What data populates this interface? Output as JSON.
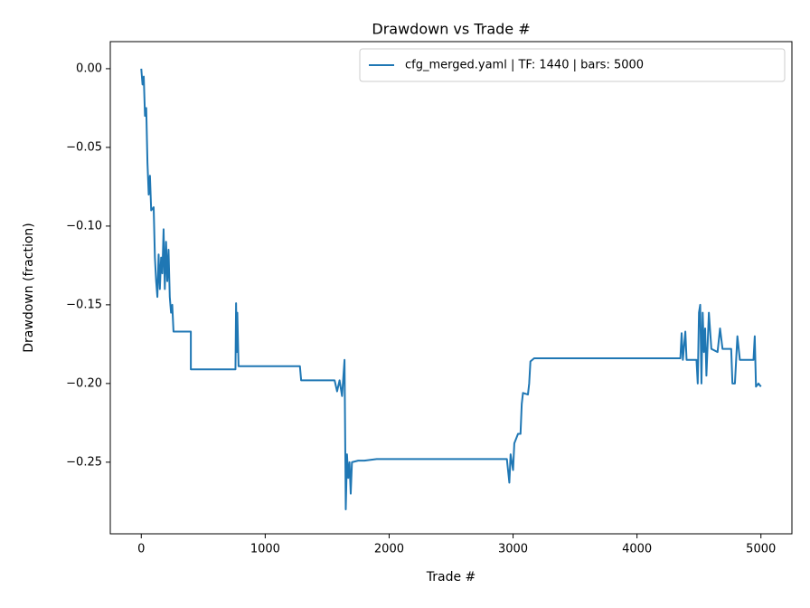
{
  "chart_data": {
    "type": "line",
    "title": "Drawdown vs Trade #",
    "x_label": "Trade #",
    "y_label": "Drawdown (fraction)",
    "xlim": [
      -250,
      5250
    ],
    "ylim": [
      -0.2955,
      0.0172
    ],
    "xticks": [
      0,
      1000,
      2000,
      3000,
      4000,
      5000
    ],
    "yticks": [
      {
        "value": 0,
        "label": "0.00"
      },
      {
        "value": -0.05,
        "label": "−0.05"
      },
      {
        "value": -0.1,
        "label": "−0.10"
      },
      {
        "value": -0.15,
        "label": "−0.15"
      },
      {
        "value": -0.2,
        "label": "−0.20"
      },
      {
        "value": -0.25,
        "label": "−0.25"
      }
    ],
    "legend": "upper right",
    "grid": false,
    "series": [
      {
        "name": "cfg_merged.yaml | TF: 1440 | bars: 5000",
        "color": "#1f77b4",
        "x": [
          0,
          10,
          20,
          30,
          40,
          50,
          60,
          70,
          80,
          100,
          110,
          120,
          130,
          140,
          150,
          160,
          170,
          180,
          190,
          200,
          210,
          220,
          230,
          240,
          250,
          260,
          400,
          400,
          760,
          765,
          770,
          775,
          785,
          1280,
          1290,
          1560,
          1580,
          1600,
          1620,
          1640,
          1650,
          1660,
          1670,
          1680,
          1690,
          1700,
          1750,
          1800,
          1900,
          2950,
          2970,
          2980,
          3000,
          3010,
          3040,
          3060,
          3070,
          3080,
          3120,
          3130,
          3140,
          3170,
          4350,
          4360,
          4370,
          4390,
          4400,
          4480,
          4490,
          4500,
          4510,
          4520,
          4530,
          4540,
          4550,
          4560,
          4580,
          4600,
          4650,
          4670,
          4690,
          4760,
          4770,
          4790,
          4810,
          4830,
          4940,
          4950,
          4960,
          4980,
          5000
        ],
        "values": [
          0,
          -0.01,
          -0.005,
          -0.03,
          -0.025,
          -0.06,
          -0.08,
          -0.068,
          -0.09,
          -0.088,
          -0.12,
          -0.135,
          -0.145,
          -0.118,
          -0.14,
          -0.12,
          -0.13,
          -0.102,
          -0.14,
          -0.11,
          -0.135,
          -0.115,
          -0.145,
          -0.155,
          -0.15,
          -0.167,
          -0.167,
          -0.191,
          -0.191,
          -0.149,
          -0.18,
          -0.155,
          -0.189,
          -0.189,
          -0.198,
          -0.198,
          -0.205,
          -0.198,
          -0.208,
          -0.185,
          -0.28,
          -0.245,
          -0.26,
          -0.25,
          -0.27,
          -0.25,
          -0.249,
          -0.249,
          -0.248,
          -0.248,
          -0.263,
          -0.245,
          -0.255,
          -0.238,
          -0.232,
          -0.232,
          -0.213,
          -0.206,
          -0.207,
          -0.2,
          -0.186,
          -0.184,
          -0.184,
          -0.168,
          -0.185,
          -0.167,
          -0.185,
          -0.185,
          -0.2,
          -0.155,
          -0.15,
          -0.2,
          -0.155,
          -0.18,
          -0.165,
          -0.195,
          -0.155,
          -0.178,
          -0.18,
          -0.165,
          -0.178,
          -0.178,
          -0.2,
          -0.2,
          -0.17,
          -0.185,
          -0.185,
          -0.17,
          -0.202,
          -0.2,
          -0.202
        ]
      }
    ]
  }
}
